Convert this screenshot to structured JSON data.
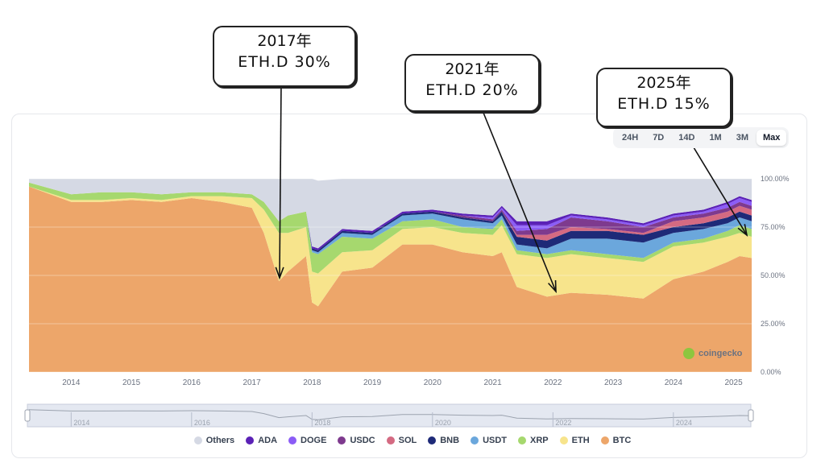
{
  "range_buttons": [
    "24H",
    "7D",
    "14D",
    "1M",
    "3M",
    "Max"
  ],
  "active_range": "Max",
  "watermark": "coingecko",
  "annotations": [
    {
      "line1": "2017年",
      "line2": "ETH.D 30%"
    },
    {
      "line1": "2021年",
      "line2": "ETH.D 20%"
    },
    {
      "line1": "2025年",
      "line2": "ETH.D 15%"
    }
  ],
  "colors": {
    "Others": "#d5d9e4",
    "ADA": "#5b21b6",
    "DOGE": "#8b5cf6",
    "USDC": "#7e3a8e",
    "SOL": "#d46a82",
    "BNB": "#1e2a78",
    "USDT": "#6ba7dc",
    "XRP": "#a6d86e",
    "ETH": "#f7e48c",
    "BTC": "#eda66a"
  },
  "chart_data": {
    "type": "area",
    "stacked": true,
    "title": "",
    "xlabel": "",
    "ylabel": "",
    "ylim": [
      0,
      100
    ],
    "y_ticks": [
      "0.00%",
      "25.00%",
      "50.00%",
      "75.00%",
      "100.00%"
    ],
    "x_ticks": [
      "2014",
      "2015",
      "2016",
      "2017",
      "2018",
      "2019",
      "2020",
      "2021",
      "2022",
      "2023",
      "2024",
      "2025"
    ],
    "navigator_ticks": [
      "2014",
      "2016",
      "2018",
      "2020",
      "2022",
      "2024"
    ],
    "x": [
      2013.3,
      2014.0,
      2014.5,
      2015.0,
      2015.5,
      2016.0,
      2016.5,
      2017.0,
      2017.2,
      2017.45,
      2017.6,
      2017.9,
      2018.0,
      2018.1,
      2018.5,
      2019.0,
      2019.5,
      2020.0,
      2020.5,
      2021.0,
      2021.15,
      2021.4,
      2021.9,
      2022.3,
      2022.9,
      2023.5,
      2024.0,
      2024.5,
      2024.9,
      2025.1,
      2025.3
    ],
    "series": [
      {
        "name": "BTC",
        "values": [
          96,
          88,
          88,
          89,
          88,
          90,
          88,
          85,
          72,
          47,
          52,
          60,
          36,
          34,
          52,
          54,
          66,
          66,
          62,
          60,
          62,
          44,
          39,
          41,
          40,
          38,
          48,
          52,
          57,
          60,
          59
        ]
      },
      {
        "name": "ETH",
        "values": [
          0,
          1,
          1,
          1,
          1,
          1,
          3,
          5,
          12,
          25,
          20,
          15,
          16,
          17,
          10,
          9,
          8,
          9,
          10,
          11,
          14,
          17,
          20,
          20,
          19,
          19,
          17,
          15,
          13,
          12,
          11
        ]
      },
      {
        "name": "XRP",
        "values": [
          2,
          3,
          4,
          3,
          3,
          2,
          2,
          2,
          4,
          6,
          9,
          8,
          10,
          10,
          8,
          6,
          4,
          4,
          3,
          3,
          3,
          2,
          2,
          2,
          2,
          2,
          2,
          2,
          3,
          4,
          4
        ]
      },
      {
        "name": "USDT",
        "values": [
          0,
          0,
          0,
          0,
          0,
          0,
          0,
          0,
          0,
          0,
          0,
          0,
          1,
          1,
          2,
          2,
          3,
          3,
          4,
          3,
          2,
          3,
          3,
          6,
          8,
          8,
          5,
          5,
          4,
          4,
          4
        ]
      },
      {
        "name": "BNB",
        "values": [
          0,
          0,
          0,
          0,
          0,
          0,
          0,
          0,
          0,
          0,
          0,
          0,
          1,
          1,
          1,
          1,
          1,
          1,
          1,
          1,
          2,
          4,
          4,
          4,
          4,
          4,
          3,
          3,
          3,
          3,
          3
        ]
      },
      {
        "name": "SOL",
        "values": [
          0,
          0,
          0,
          0,
          0,
          0,
          0,
          0,
          0,
          0,
          0,
          0,
          0,
          0,
          0,
          0,
          0,
          0,
          0,
          0,
          0,
          1,
          3,
          2,
          1,
          1,
          3,
          3,
          3,
          3,
          3
        ]
      },
      {
        "name": "USDC",
        "values": [
          0,
          0,
          0,
          0,
          0,
          0,
          0,
          0,
          0,
          0,
          0,
          0,
          0,
          0,
          0,
          0,
          0,
          0,
          1,
          1,
          1,
          2,
          3,
          5,
          4,
          3,
          2,
          2,
          2,
          2,
          2
        ]
      },
      {
        "name": "DOGE",
        "values": [
          0,
          0,
          0,
          0,
          0,
          0,
          0,
          0,
          0,
          0,
          0,
          0,
          0,
          0,
          0,
          0,
          0,
          0,
          0,
          1,
          1,
          3,
          2,
          1,
          1,
          1,
          1,
          1,
          2,
          2,
          2
        ]
      },
      {
        "name": "ADA",
        "values": [
          0,
          0,
          0,
          0,
          0,
          0,
          0,
          0,
          0,
          0,
          0,
          0,
          1,
          1,
          1,
          1,
          1,
          1,
          1,
          1,
          1,
          2,
          2,
          1,
          1,
          1,
          1,
          1,
          1,
          1,
          1
        ]
      },
      {
        "name": "Others",
        "values": [
          2,
          8,
          7,
          7,
          8,
          7,
          7,
          8,
          12,
          22,
          19,
          17,
          35,
          35,
          26,
          27,
          17,
          16,
          18,
          19,
          14,
          22,
          22,
          18,
          20,
          23,
          18,
          16,
          12,
          9,
          11
        ]
      }
    ],
    "legend": [
      "Others",
      "ADA",
      "DOGE",
      "USDC",
      "SOL",
      "BNB",
      "USDT",
      "XRP",
      "ETH",
      "BTC"
    ],
    "legend_position": "bottom",
    "grid": true
  }
}
